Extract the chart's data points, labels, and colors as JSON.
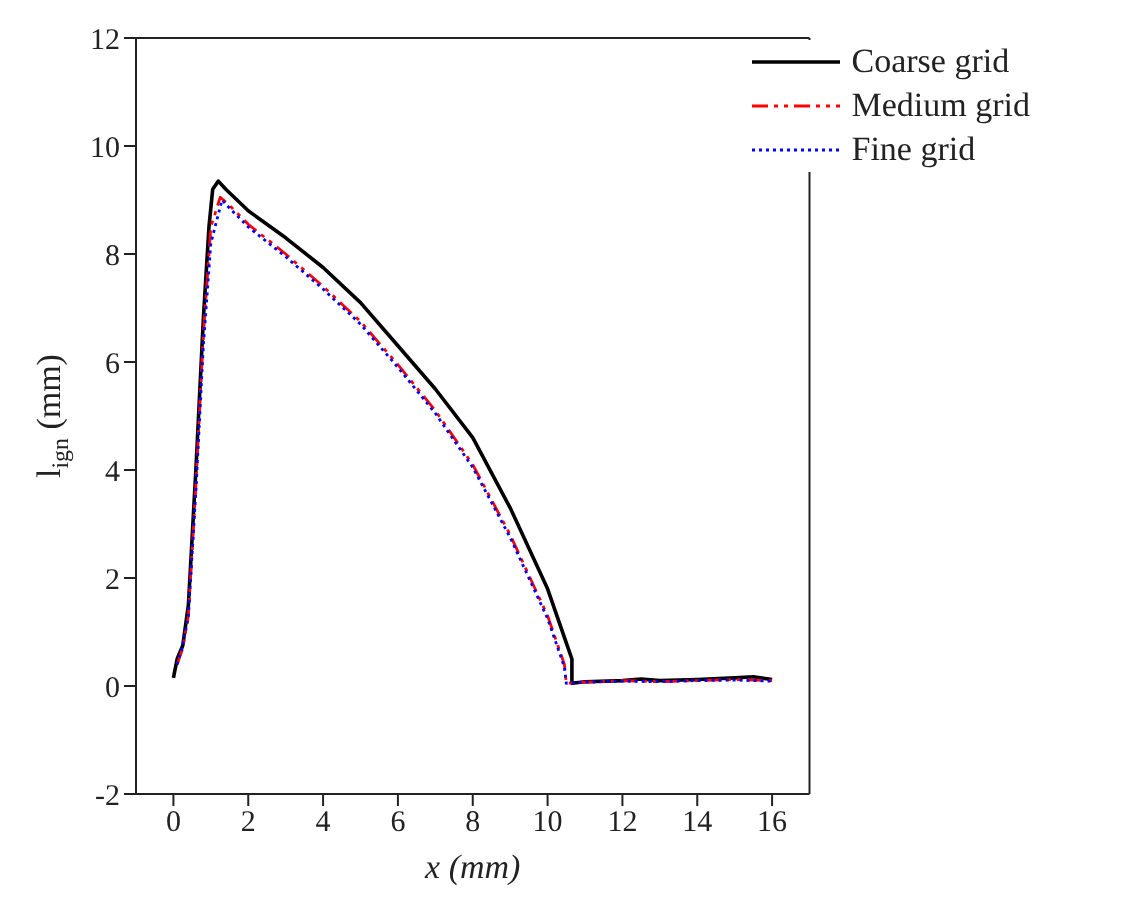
{
  "chart_data": {
    "type": "line",
    "xlabel": "x (mm)",
    "ylabel": "l$_{ign}$ (mm)",
    "xlim": [
      -1,
      17
    ],
    "xticks": [
      0,
      2,
      4,
      6,
      8,
      10,
      12,
      14,
      16
    ],
    "ylim": [
      -2,
      12
    ],
    "yticks": [
      -2,
      0,
      2,
      4,
      6,
      8,
      10,
      12
    ],
    "legend": "top right",
    "marker": "none",
    "series": [
      {
        "name": "Coarse grid",
        "color": "#000000",
        "line_style": "solid",
        "x": [
          0,
          0.1,
          0.25,
          0.4,
          0.6,
          0.8,
          0.95,
          1.05,
          1.2,
          1.4,
          2,
          3,
          4,
          5,
          6,
          7,
          8,
          9,
          10,
          10.5,
          10.65,
          10.65,
          11,
          12,
          12.5,
          13,
          14,
          15,
          15.5,
          16
        ],
        "values": [
          0.15,
          0.5,
          0.75,
          1.5,
          4,
          6.8,
          8.5,
          9.2,
          9.35,
          9.2,
          8.8,
          8.3,
          7.75,
          7.1,
          6.3,
          5.5,
          4.6,
          3.3,
          1.8,
          0.8,
          0.5,
          0.05,
          0.08,
          0.1,
          0.13,
          0.1,
          0.12,
          0.15,
          0.17,
          0.12
        ]
      },
      {
        "name": "Medium grid",
        "color": "#ff0000",
        "line_style": "dashed",
        "x": [
          0.1,
          0.25,
          0.4,
          0.6,
          0.8,
          1.0,
          1.25,
          1.5,
          2,
          3,
          4,
          5,
          6,
          7,
          8,
          9,
          10,
          10.45,
          10.5,
          11,
          12,
          13,
          14,
          15,
          16
        ],
        "values": [
          0.4,
          0.7,
          1.3,
          3.7,
          6.5,
          8.5,
          9.05,
          8.9,
          8.55,
          8.0,
          7.4,
          6.75,
          5.95,
          5.1,
          4.1,
          2.8,
          1.3,
          0.4,
          0.05,
          0.07,
          0.1,
          0.08,
          0.1,
          0.12,
          0.1
        ]
      },
      {
        "name": "Fine grid",
        "color": "#0000ff",
        "line_style": "dotted",
        "x": [
          0.1,
          0.25,
          0.4,
          0.6,
          0.8,
          1.0,
          1.3,
          1.5,
          2,
          3,
          4,
          5,
          6,
          7,
          8,
          9,
          10,
          10.45,
          10.5,
          11,
          12,
          13,
          14,
          15,
          16
        ],
        "values": [
          0.4,
          0.75,
          1.3,
          3.6,
          6.3,
          8.2,
          9.0,
          8.85,
          8.5,
          7.95,
          7.35,
          6.7,
          5.9,
          5.05,
          4.05,
          2.75,
          1.25,
          0.35,
          0.05,
          0.07,
          0.09,
          0.08,
          0.1,
          0.11,
          0.09
        ]
      }
    ]
  }
}
